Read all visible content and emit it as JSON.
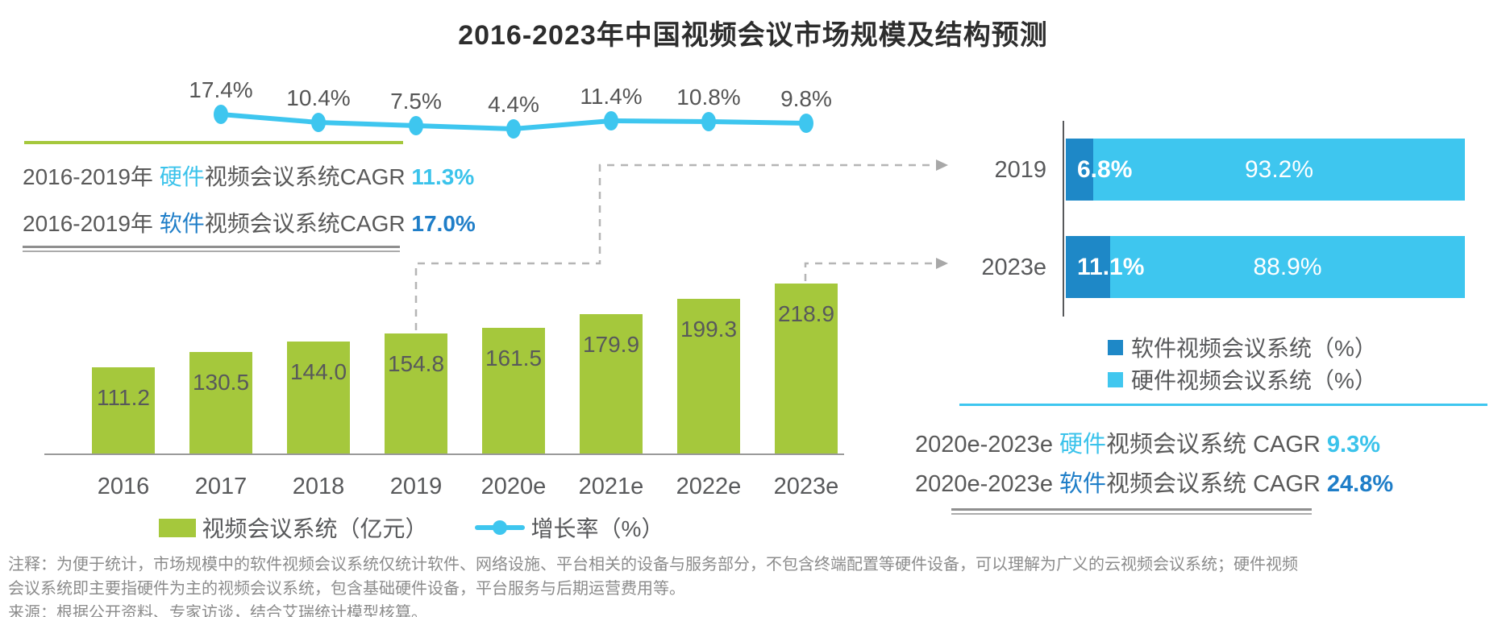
{
  "title": "2016-2023年中国视频会议市场规模及结构预测",
  "colors": {
    "bar_green": "#A5C83C",
    "line_cyan": "#3EC6EF",
    "software_blue": "#1E88C7",
    "hardware_cyan": "#41C7EF",
    "accent_cyan_text": "#3BC3EB",
    "accent_blue_text": "#1F7EC8",
    "text_gray": "#595959",
    "note_gray": "#8C8C8C",
    "dash_gray": "#B5B5B5"
  },
  "chart_data": [
    {
      "type": "bar",
      "subtype": "bar-line-combo",
      "categories": [
        "2016",
        "2017",
        "2018",
        "2019",
        "2020e",
        "2021e",
        "2022e",
        "2023e"
      ],
      "series": [
        {
          "name": "视频会议系统（亿元）",
          "type": "bar",
          "values": [
            111.2,
            130.5,
            144.0,
            154.8,
            161.5,
            179.9,
            199.3,
            218.9
          ]
        },
        {
          "name": "增长率（%）",
          "type": "line",
          "values": [
            null,
            17.4,
            10.4,
            7.5,
            4.4,
            11.4,
            10.8,
            9.8
          ]
        }
      ],
      "value_labels": "on",
      "legend_position": "bottom",
      "grid": "off"
    },
    {
      "type": "bar",
      "subtype": "horizontal-stacked",
      "categories": [
        "2019",
        "2023e"
      ],
      "series": [
        {
          "name": "软件视频会议系统（%）",
          "values": [
            6.8,
            11.1
          ]
        },
        {
          "name": "硬件视频会议系统（%）",
          "values": [
            93.2,
            88.9
          ]
        }
      ],
      "xlim": [
        0,
        100
      ],
      "value_labels": "on",
      "legend_position": "bottom"
    }
  ],
  "annotations": {
    "left": [
      {
        "prefix": "2016-2019年 ",
        "keyword": "硬件",
        "middle": "视频会议系统CAGR ",
        "value": "11.3%"
      },
      {
        "prefix": "2016-2019年 ",
        "keyword": "软件",
        "middle": "视频会议系统CAGR ",
        "value": "17.0%"
      }
    ],
    "right": [
      {
        "prefix": "2020e-2023e ",
        "keyword": "硬件",
        "middle": "视频会议系统 CAGR ",
        "value": "9.3%"
      },
      {
        "prefix": "2020e-2023e ",
        "keyword": "软件",
        "middle": "视频会议系统 CAGR ",
        "value": "24.8%"
      }
    ]
  },
  "legend_main": [
    {
      "label": "视频会议系统（亿元）"
    },
    {
      "label": "增长率（%）"
    }
  ],
  "legend_right": [
    {
      "label": "软件视频会议系统（%）"
    },
    {
      "label": "硬件视频会议系统（%）"
    }
  ],
  "footnote": {
    "note_line1": "注释：为便于统计，市场规模中的软件视频会议系统仅统计软件、网络设施、平台相关的设备与服务部分，不包含终端配置等硬件设备，可以理解为广义的云视频会议系统；硬件视频",
    "note_line2": "会议系统即主要指硬件为主的视频会议系统，包含基础硬件设备，平台服务与后期运营费用等。",
    "source": "来源：根据公开资料、专家访谈，结合艾瑞统计模型核算。"
  }
}
